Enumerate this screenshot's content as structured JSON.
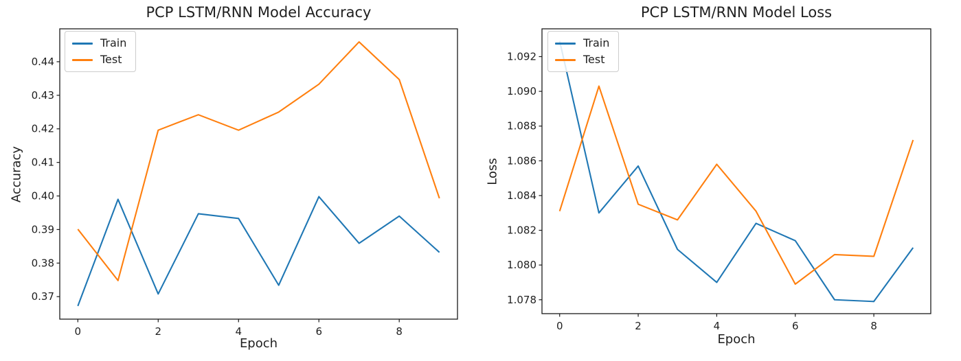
{
  "figure": {
    "background": "#ffffff"
  },
  "chart_data": [
    {
      "type": "line",
      "title": "PCP LSTM/RNN Model Accuracy",
      "xlabel": "Epoch",
      "ylabel": "Accuracy",
      "x": [
        0,
        1,
        2,
        3,
        4,
        5,
        6,
        7,
        8,
        9
      ],
      "series": [
        {
          "name": "Train",
          "color": "#1f77b4",
          "values": [
            0.3672,
            0.399,
            0.3708,
            0.3947,
            0.3933,
            0.3734,
            0.3998,
            0.3859,
            0.394,
            0.3832
          ]
        },
        {
          "name": "Test",
          "color": "#ff7f0e",
          "values": [
            0.3901,
            0.3748,
            0.4196,
            0.4242,
            0.4196,
            0.425,
            0.4333,
            0.4459,
            0.4347,
            0.3993
          ]
        }
      ],
      "xlim": [
        -0.45,
        9.45
      ],
      "ylim": [
        0.3633,
        0.4498
      ],
      "xticks": [
        0,
        2,
        4,
        6,
        8
      ],
      "xtick_labels": [
        "0",
        "2",
        "4",
        "6",
        "8"
      ],
      "yticks": [
        0.37,
        0.38,
        0.39,
        0.4,
        0.41,
        0.42,
        0.43,
        0.44
      ],
      "ytick_labels": [
        "0.37",
        "0.38",
        "0.39",
        "0.40",
        "0.41",
        "0.42",
        "0.43",
        "0.44"
      ],
      "legend": {
        "position": "upper left",
        "entries": [
          "Train",
          "Test"
        ]
      },
      "grid": false
    },
    {
      "type": "line",
      "title": "PCP LSTM/RNN Model Loss",
      "xlabel": "Epoch",
      "ylabel": "Loss",
      "x": [
        0,
        1,
        2,
        3,
        4,
        5,
        6,
        7,
        8,
        9
      ],
      "series": [
        {
          "name": "Train",
          "color": "#1f77b4",
          "values": [
            1.0929,
            1.083,
            1.0857,
            1.0809,
            1.079,
            1.0824,
            1.0814,
            1.078,
            1.0779,
            1.081
          ]
        },
        {
          "name": "Test",
          "color": "#ff7f0e",
          "values": [
            1.0831,
            1.0903,
            1.0835,
            1.0826,
            1.0858,
            1.0831,
            1.0789,
            1.0806,
            1.0805,
            1.0872
          ]
        }
      ],
      "xlim": [
        -0.45,
        9.45
      ],
      "ylim": [
        1.0772,
        1.0936
      ],
      "xticks": [
        0,
        2,
        4,
        6,
        8
      ],
      "xtick_labels": [
        "0",
        "2",
        "4",
        "6",
        "8"
      ],
      "yticks": [
        1.078,
        1.08,
        1.082,
        1.084,
        1.086,
        1.088,
        1.09,
        1.092
      ],
      "ytick_labels": [
        "1.078",
        "1.080",
        "1.082",
        "1.084",
        "1.086",
        "1.088",
        "1.090",
        "1.092"
      ],
      "legend": {
        "position": "upper left",
        "entries": [
          "Train",
          "Test"
        ]
      },
      "grid": false
    }
  ]
}
